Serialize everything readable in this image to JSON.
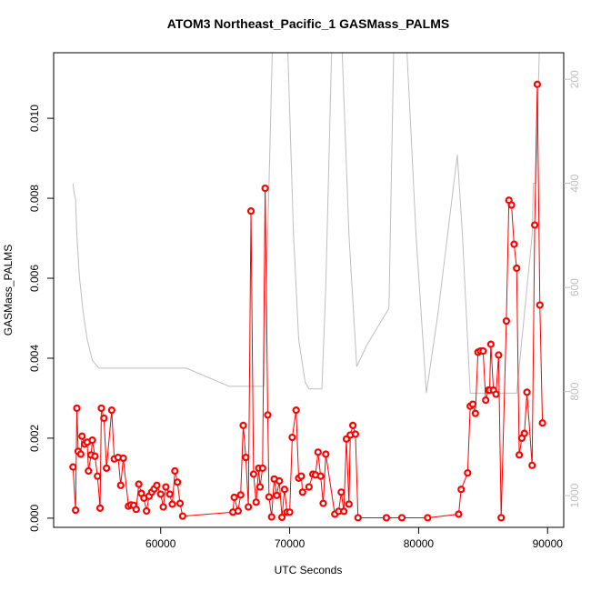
{
  "chart_data": {
    "type": "line",
    "title": "ATOM3 Northeast_Pacific_1 GASMass_PALMS",
    "xlabel": "UTC Seconds",
    "ylabel": "GASMass_PALMS",
    "xlim": [
      51700,
      91250
    ],
    "ylim": [
      -0.00023,
      0.01164
    ],
    "y2lim": [
      1061,
      149
    ],
    "xticks": [
      60000,
      70000,
      80000,
      90000
    ],
    "yticks": [
      {
        "value": 0,
        "label": "0.000"
      },
      {
        "value": 0.002,
        "label": "0.002"
      },
      {
        "value": 0.004,
        "label": "0.004"
      },
      {
        "value": 0.006,
        "label": "0.006"
      },
      {
        "value": 0.008,
        "label": "0.008"
      },
      {
        "value": 0.01,
        "label": "0.010"
      }
    ],
    "y2ticks": [
      200,
      400,
      600,
      800,
      1000
    ],
    "y2color": "#bebebe",
    "series": [
      {
        "color": "#bebebe",
        "axis": "y2",
        "x": [
          53200,
          53300,
          53400,
          53500,
          53700,
          54000,
          54300,
          54700,
          55200,
          62000,
          65300,
          67000,
          68000,
          68300,
          68700,
          69800,
          70300,
          70700,
          71200,
          71500,
          72500,
          72800,
          73300,
          74000,
          74600,
          75200,
          76000,
          77700,
          78100,
          79000,
          79800,
          80600,
          81500,
          83000,
          83400,
          84000,
          87600,
          88800,
          88900,
          89100,
          89400
        ],
        "values": [
          400,
          420,
          430,
          500,
          580,
          650,
          700,
          740,
          755,
          755,
          790,
          790,
          790,
          500,
          100,
          100,
          500,
          700,
          782,
          795,
          795,
          600,
          100,
          100,
          500,
          752,
          710,
          640,
          100,
          100,
          500,
          803,
          650,
          345,
          500,
          803,
          803,
          500,
          400,
          400,
          100
        ]
      },
      {
        "color": "#ff0000",
        "x": [
          53200,
          53400,
          53500,
          53600,
          53800,
          53900,
          54100,
          54300,
          54400,
          54600,
          54700,
          54900,
          55100,
          55300,
          55400,
          55600,
          55800,
          56200,
          56400,
          56700,
          56900,
          57100,
          57500,
          57700,
          57900,
          58100,
          58300,
          58500,
          58700,
          58900,
          59100,
          59300,
          59500,
          59700,
          60000,
          60200,
          60400,
          60700,
          60900,
          61100,
          61300,
          61500,
          61700,
          65600,
          65700,
          66000,
          66200,
          66400,
          66600,
          66800,
          67000,
          67200,
          67400,
          67600,
          67700,
          67900,
          68100,
          68300,
          68400,
          68600,
          68800,
          69000,
          69200,
          69400,
          69600,
          69800,
          70000,
          70200,
          70500,
          70700,
          70900,
          71000,
          71500,
          71800,
          72000,
          72200,
          72400,
          72600,
          72800,
          73500,
          73800,
          74000,
          74200,
          74400,
          74600,
          74700,
          74900,
          75100,
          75300,
          77500,
          78700,
          80700,
          83100,
          83300,
          83800,
          84000,
          84200,
          84400,
          84600,
          84800,
          85000,
          85200,
          85400,
          85500,
          85600,
          85800,
          86000,
          86200,
          86400,
          86800,
          87000,
          87200,
          87400,
          87600,
          87800,
          88000,
          88200,
          88400,
          88800,
          89000,
          89200,
          89400,
          89600
        ],
        "values": [
          0.00128,
          0.0002,
          0.00275,
          0.00167,
          0.0016,
          0.00205,
          0.00185,
          0.0019,
          0.00118,
          0.00158,
          0.00195,
          0.00155,
          0.00105,
          0.00025,
          0.00275,
          0.0025,
          0.00125,
          0.0027,
          0.00148,
          0.00152,
          0.00082,
          0.0015,
          0.0003,
          0.00033,
          0.00032,
          0.00022,
          0.00085,
          0.00062,
          0.0005,
          0.00018,
          0.00055,
          0.00065,
          0.00073,
          0.00082,
          0.0006,
          0.00028,
          0.00078,
          0.0006,
          0.00035,
          0.00118,
          0.0009,
          0.00037,
          5e-05,
          0.00015,
          0.00052,
          0.00018,
          0.00058,
          0.00232,
          0.00152,
          0.00028,
          0.00768,
          0.0011,
          0.0004,
          0.00125,
          0.00078,
          0.00125,
          0.00825,
          0.00258,
          0.00053,
          3e-05,
          0.00098,
          0.00057,
          0.00093,
          2e-05,
          0.00072,
          0.00015,
          0.00015,
          0.00202,
          0.0027,
          0.001,
          0.00105,
          0.00065,
          0.00078,
          0.0011,
          0.00108,
          0.00165,
          0.00105,
          0.00037,
          0.0016,
          0.0001,
          0.00017,
          0.00065,
          0.00017,
          0.00198,
          0.00035,
          0.00208,
          0.00232,
          0.0021,
          1e-05,
          1e-05,
          1e-05,
          1e-05,
          0.0001,
          0.00072,
          0.00113,
          0.0028,
          0.00285,
          0.00262,
          0.00415,
          0.00418,
          0.00418,
          0.00295,
          0.0032,
          0.0032,
          0.00435,
          0.0032,
          0.0031,
          0.00408,
          1e-05,
          0.00493,
          0.00795,
          0.00783,
          0.00685,
          0.00625,
          0.00158,
          0.002,
          0.00212,
          0.00315,
          0.00132,
          0.00733,
          0.01085,
          0.00533,
          0.00238
        ]
      }
    ]
  }
}
